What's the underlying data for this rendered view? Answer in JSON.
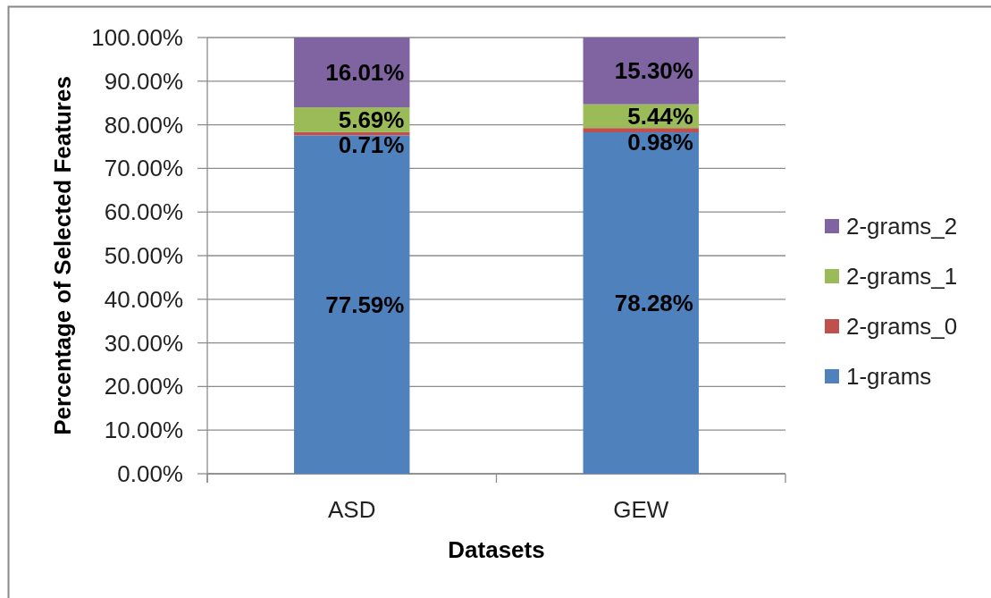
{
  "chart_data": {
    "type": "bar",
    "stacked": true,
    "xlabel": "Datasets",
    "ylabel": "Percentage of Selected Features",
    "categories": [
      "ASD",
      "GEW"
    ],
    "series": [
      {
        "name": "1-grams",
        "color": "#4f81bd",
        "values": [
          77.59,
          78.28
        ],
        "value_labels": [
          "77.59%",
          "78.28%"
        ]
      },
      {
        "name": "2-grams_0",
        "color": "#c0504d",
        "values": [
          0.71,
          0.98
        ],
        "value_labels": [
          "0.71%",
          "0.98%"
        ]
      },
      {
        "name": "2-grams_1",
        "color": "#9bbb59",
        "values": [
          5.69,
          5.44
        ],
        "value_labels": [
          "5.69%",
          "5.44%"
        ]
      },
      {
        "name": "2-grams_2",
        "color": "#8064a2",
        "values": [
          16.01,
          15.3
        ],
        "value_labels": [
          "16.01%",
          "15.30%"
        ]
      }
    ],
    "ylim": [
      0,
      100
    ],
    "yticks": [
      {
        "value": 0,
        "label": "0.00%"
      },
      {
        "value": 10,
        "label": "10.00%"
      },
      {
        "value": 20,
        "label": "20.00%"
      },
      {
        "value": 30,
        "label": "30.00%"
      },
      {
        "value": 40,
        "label": "40.00%"
      },
      {
        "value": 50,
        "label": "50.00%"
      },
      {
        "value": 60,
        "label": "60.00%"
      },
      {
        "value": 70,
        "label": "70.00%"
      },
      {
        "value": 80,
        "label": "80.00%"
      },
      {
        "value": 90,
        "label": "90.00%"
      },
      {
        "value": 100,
        "label": "100.00%"
      }
    ],
    "grid": "y",
    "legend": "right"
  }
}
